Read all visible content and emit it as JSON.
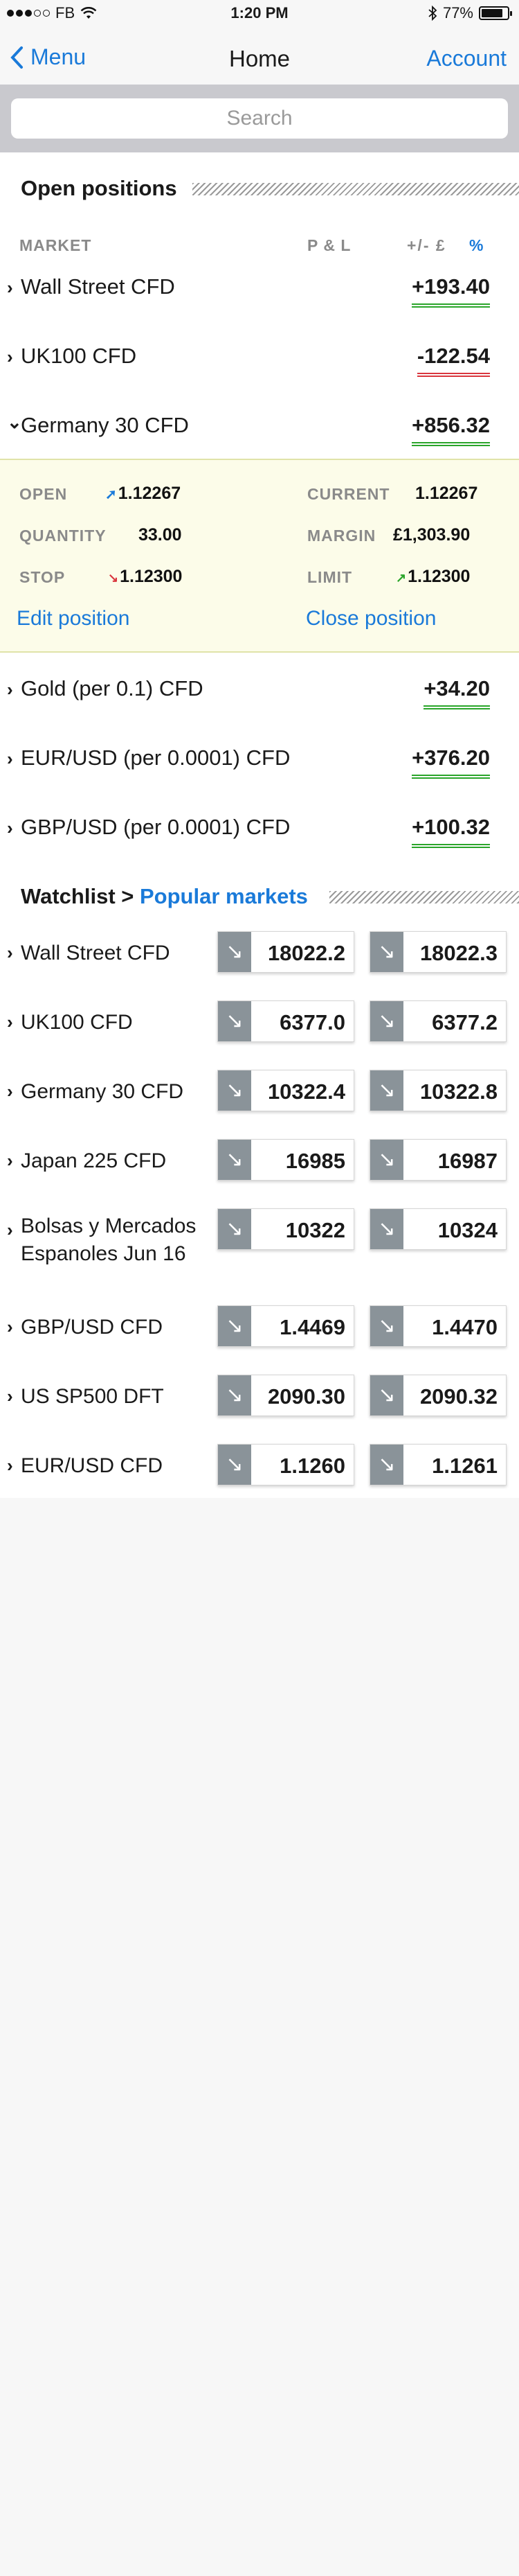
{
  "status_bar": {
    "carrier": "FB",
    "time": "1:20 PM",
    "battery": "77%"
  },
  "nav": {
    "back_label": "Menu",
    "title": "Home",
    "account_label": "Account"
  },
  "search": {
    "placeholder": "Search"
  },
  "open_positions": {
    "title": "Open positions",
    "columns": {
      "market": "MARKET",
      "pl": "P & L",
      "plusminus": "+/-  £",
      "percent": "%"
    },
    "rows": [
      {
        "name": "Wall Street CFD",
        "pl": "+193.40",
        "sign": "pos",
        "chevron": "›"
      },
      {
        "name": "UK100 CFD",
        "pl": "-122.54",
        "sign": "neg",
        "chevron": "›"
      },
      {
        "name": "Germany 30 CFD",
        "pl": "+856.32",
        "sign": "pos",
        "chevron": "⌄"
      },
      {
        "name": "Gold (per 0.1) CFD",
        "pl": "+34.20",
        "sign": "pos",
        "chevron": "›"
      },
      {
        "name": "EUR/USD (per 0.0001) CFD",
        "pl": "+376.20",
        "sign": "pos",
        "chevron": "›"
      },
      {
        "name": "GBP/USD (per 0.0001) CFD",
        "pl": "+100.32",
        "sign": "pos",
        "chevron": "›"
      }
    ],
    "expanded": {
      "open_label": "OPEN",
      "open_value": "1.12267",
      "current_label": "CURRENT",
      "current_value": "1.12267",
      "quantity_label": "QUANTITY",
      "quantity_value": "33.00",
      "margin_label": "MARGIN",
      "margin_value": "£1,303.90",
      "stop_label": "STOP",
      "stop_value": "1.12300",
      "limit_label": "LIMIT",
      "limit_value": "1.12300",
      "edit_label": "Edit position",
      "close_label": "Close position"
    }
  },
  "watchlist": {
    "title": "Watchlist >",
    "list_name": "Popular markets",
    "rows": [
      {
        "name": "Wall Street CFD",
        "sell": "18022.2",
        "buy": "18022.3"
      },
      {
        "name": "UK100 CFD",
        "sell": "6377.0",
        "buy": "6377.2"
      },
      {
        "name": "Germany 30 CFD",
        "sell": "10322.4",
        "buy": "10322.8"
      },
      {
        "name": "Japan 225 CFD",
        "sell": "16985",
        "buy": "16987"
      },
      {
        "name": "Bolsas y Mercados Espanoles Jun 16",
        "sell": "10322",
        "buy": "10324"
      },
      {
        "name": "GBP/USD CFD",
        "sell": "1.4469",
        "buy": "1.4470"
      },
      {
        "name": "US SP500 DFT",
        "sell": "2090.30",
        "buy": "2090.32"
      },
      {
        "name": "EUR/USD CFD",
        "sell": "1.1260",
        "buy": "1.1261"
      }
    ]
  },
  "colors": {
    "accent": "#1a7ad9",
    "positive": "#2aa52a",
    "negative": "#d9363e",
    "expanded_bg": "#fcfce9"
  }
}
